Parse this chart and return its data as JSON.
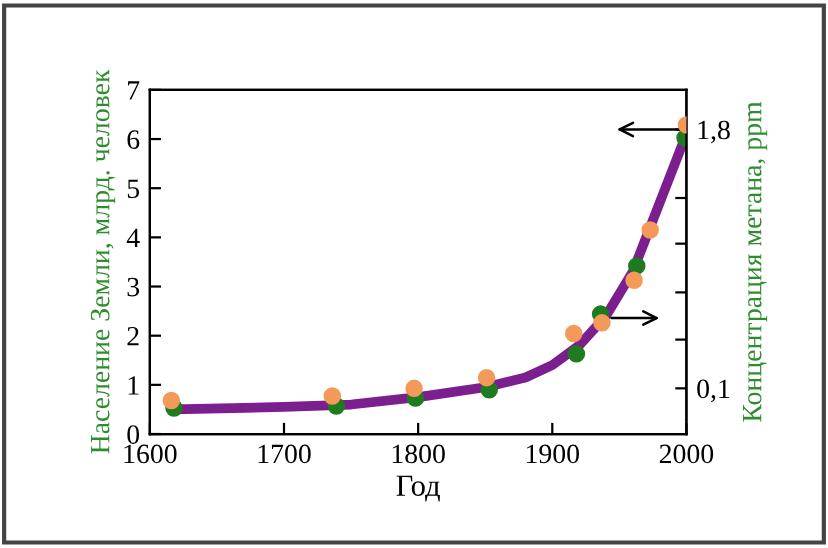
{
  "chart_data": {
    "type": "line",
    "xlabel": "Год",
    "ylabel": "Население Земли, млрд. человек",
    "y2label": "Концентрация метана, ppm",
    "xlim": [
      1600,
      2000
    ],
    "xticks": [
      1600,
      1700,
      1800,
      1900,
      2000
    ],
    "ylim": [
      0,
      7
    ],
    "yticks": [
      0,
      1,
      2,
      3,
      4,
      5,
      6,
      7
    ],
    "y2lim": [
      -0.2,
      2.06
    ],
    "y2ticks": [
      {
        "value": 0.1,
        "label": "0,1"
      },
      {
        "value": 0.42,
        "label": null
      },
      {
        "value": 0.73,
        "label": null
      },
      {
        "value": 1.05,
        "label": null
      },
      {
        "value": 1.35,
        "label": null
      },
      {
        "value": 1.8,
        "label": "1,8"
      }
    ],
    "grid": false,
    "series": [
      {
        "color": "#7b1f8f",
        "marker": "none",
        "line_style": "solid",
        "x": [
          1618,
          1700,
          1750,
          1800,
          1850,
          1880,
          1900,
          1920,
          1940,
          1960,
          1970,
          1980,
          1990,
          2000
        ],
        "values": [
          0.5,
          0.55,
          0.6,
          0.75,
          0.95,
          1.15,
          1.4,
          1.8,
          2.4,
          3.3,
          4.0,
          4.7,
          5.4,
          6.1
        ]
      },
      {
        "type": "scatter",
        "color": "#1e7b1e",
        "marker": "circle",
        "x": [
          1618,
          1739,
          1798,
          1853,
          1918,
          1936,
          1963,
          1999
        ],
        "values": [
          0.53,
          0.57,
          0.73,
          0.9,
          1.63,
          2.44,
          3.42,
          6.02
        ]
      },
      {
        "type": "scatter",
        "axis": "y2",
        "color": "#f39a5a",
        "marker": "circle",
        "x": [
          1616,
          1736,
          1797,
          1851,
          1916,
          1937,
          1961,
          1973,
          2000
        ],
        "values": [
          0.02,
          0.05,
          0.1,
          0.17,
          0.46,
          0.53,
          0.81,
          1.14,
          1.83
        ]
      }
    ]
  }
}
